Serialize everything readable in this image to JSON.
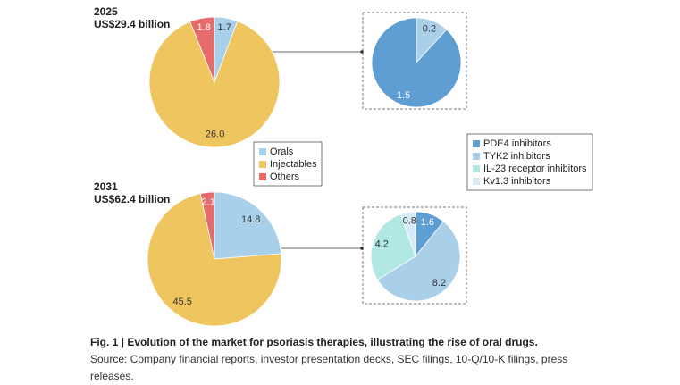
{
  "chart_data": [
    {
      "type": "pie",
      "title": "2025",
      "subtitle": "US$29.4 billion",
      "categories": [
        "Orals",
        "Injectables",
        "Others"
      ],
      "colors": [
        "#a9d0ea",
        "#efc55f",
        "#e66b6b"
      ],
      "values": [
        1.7,
        26.0,
        1.8
      ],
      "value_labels": [
        "1.7",
        "26.0",
        "1.8"
      ],
      "legend": true
    },
    {
      "type": "pie",
      "colors": [
        "#a9cfe9",
        "#5f9ed2"
      ],
      "values": [
        0.2,
        1.5
      ]
    },
    {
      "type": "pie",
      "title": "2031",
      "subtitle": "US$62.4 billion",
      "colors": [
        "#a9d0ea",
        "#efc55f",
        "#e66b6b"
      ],
      "values": [
        14.8,
        45.5,
        2.1
      ]
    },
    {
      "type": "pie",
      "categories": [
        "PDE4 inhibitors",
        "TYK2 inhibitors",
        "IL-23 receptor inhibitors",
        "Kv1.3 inhibitors"
      ],
      "colors": [
        "#5f9ed2",
        "#a9cfe9",
        "#b2e8e3",
        "#d6ebf7"
      ],
      "values": [
        1.6,
        8.2,
        4.2,
        0.8
      ],
      "legend": true
    }
  ],
  "caption": {
    "title": "Fig. 1 | Evolution of the market for psoriasis therapies, illustrating the rise of oral drugs.",
    "source": "Source: Company financial reports, investor presentation decks, SEC filings, 10-Q/10-K filings, press releases."
  }
}
